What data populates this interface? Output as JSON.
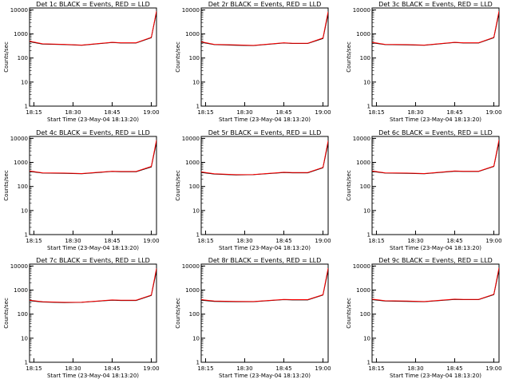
{
  "figure": {
    "background": "#ffffff",
    "event_color": "#000000",
    "lld_color": "#ff0000"
  },
  "chart_data": [
    {
      "type": "line",
      "title": "Det 1c BLACK = Events, RED = LLD",
      "xlabel": "Start Time (23-May-04 18:13:20)",
      "ylabel": "Counts/sec",
      "yscale": "log",
      "ylim": [
        1,
        12000
      ],
      "yticks": [
        1,
        10,
        100,
        1000,
        10000
      ],
      "ytick_labels": [
        "1",
        "10",
        "100",
        "1000",
        "10000"
      ],
      "xlim": [
        0,
        2920
      ],
      "xticks": [
        100,
        1000,
        1900,
        2800
      ],
      "xtick_labels": [
        "18:15",
        "18:30",
        "18:45",
        "19:00"
      ],
      "series": [
        {
          "color": "#000000",
          "x": [
            0,
            300,
            800,
            1200,
            1900,
            2100,
            2250,
            2450,
            2800,
            2920
          ],
          "y": [
            480,
            380,
            360,
            340,
            440,
            420,
            420,
            420,
            700,
            8000
          ]
        },
        {
          "color": "#ff0000",
          "x": [
            0,
            300,
            800,
            1200,
            1900,
            2100,
            2250,
            2450,
            2800,
            2920
          ],
          "y": [
            500,
            390,
            370,
            345,
            450,
            430,
            430,
            430,
            720,
            9000
          ]
        }
      ]
    },
    {
      "type": "line",
      "title": "Det 2r BLACK = Events, RED = LLD",
      "xlabel": "Start Time (23-May-04 18:13:20)",
      "ylabel": "Counts/sec",
      "yscale": "log",
      "ylim": [
        1,
        12000
      ],
      "yticks": [
        1,
        10,
        100,
        1000,
        10000
      ],
      "ytick_labels": [
        "1",
        "10",
        "100",
        "1000",
        "10000"
      ],
      "xlim": [
        0,
        2920
      ],
      "xticks": [
        100,
        1000,
        1900,
        2800
      ],
      "xtick_labels": [
        "18:15",
        "18:30",
        "18:45",
        "19:00"
      ],
      "series": [
        {
          "color": "#000000",
          "x": [
            0,
            300,
            800,
            1200,
            1900,
            2100,
            2250,
            2450,
            2800,
            2920
          ],
          "y": [
            450,
            360,
            340,
            330,
            420,
            400,
            400,
            400,
            650,
            7000
          ]
        },
        {
          "color": "#ff0000",
          "x": [
            0,
            300,
            800,
            1200,
            1900,
            2100,
            2250,
            2450,
            2800,
            2920
          ],
          "y": [
            470,
            370,
            350,
            335,
            430,
            410,
            410,
            410,
            680,
            8500
          ]
        }
      ]
    },
    {
      "type": "line",
      "title": "Det 3c BLACK = Events, RED = LLD",
      "xlabel": "Start Time (23-May-04 18:13:20)",
      "ylabel": "Counts/sec",
      "yscale": "log",
      "ylim": [
        1,
        12000
      ],
      "yticks": [
        1,
        10,
        100,
        1000,
        10000
      ],
      "ytick_labels": [
        "1",
        "10",
        "100",
        "1000",
        "10000"
      ],
      "xlim": [
        0,
        2920
      ],
      "xticks": [
        100,
        1000,
        1900,
        2800
      ],
      "xtick_labels": [
        "18:15",
        "18:30",
        "18:45",
        "19:00"
      ],
      "series": [
        {
          "color": "#000000",
          "x": [
            0,
            300,
            800,
            1200,
            1900,
            2100,
            2250,
            2450,
            2800,
            2920
          ],
          "y": [
            430,
            360,
            350,
            340,
            440,
            420,
            420,
            420,
            700,
            7500
          ]
        },
        {
          "color": "#ff0000",
          "x": [
            0,
            300,
            800,
            1200,
            1900,
            2100,
            2250,
            2450,
            2800,
            2920
          ],
          "y": [
            450,
            370,
            360,
            345,
            450,
            430,
            430,
            430,
            720,
            9000
          ]
        }
      ]
    },
    {
      "type": "line",
      "title": "Det 4c BLACK = Events, RED = LLD",
      "xlabel": "Start Time (23-May-04 18:13:20)",
      "ylabel": "Counts/sec",
      "yscale": "log",
      "ylim": [
        1,
        12000
      ],
      "yticks": [
        1,
        10,
        100,
        1000,
        10000
      ],
      "ytick_labels": [
        "1",
        "10",
        "100",
        "1000",
        "10000"
      ],
      "xlim": [
        0,
        2920
      ],
      "xticks": [
        100,
        1000,
        1900,
        2800
      ],
      "xtick_labels": [
        "18:15",
        "18:30",
        "18:45",
        "19:00"
      ],
      "series": [
        {
          "color": "#000000",
          "x": [
            0,
            300,
            800,
            1200,
            1900,
            2100,
            2250,
            2450,
            2800,
            2920
          ],
          "y": [
            420,
            360,
            350,
            340,
            420,
            410,
            410,
            410,
            650,
            7000
          ]
        },
        {
          "color": "#ff0000",
          "x": [
            0,
            300,
            800,
            1200,
            1900,
            2100,
            2250,
            2450,
            2800,
            2920
          ],
          "y": [
            440,
            370,
            360,
            345,
            430,
            420,
            420,
            420,
            680,
            8500
          ]
        }
      ]
    },
    {
      "type": "line",
      "title": "Det 5r BLACK = Events, RED = LLD",
      "xlabel": "Start Time (23-May-04 18:13:20)",
      "ylabel": "Counts/sec",
      "yscale": "log",
      "ylim": [
        1,
        12000
      ],
      "yticks": [
        1,
        10,
        100,
        1000,
        10000
      ],
      "ytick_labels": [
        "1",
        "10",
        "100",
        "1000",
        "10000"
      ],
      "xlim": [
        0,
        2920
      ],
      "xticks": [
        100,
        1000,
        1900,
        2800
      ],
      "xtick_labels": [
        "18:15",
        "18:30",
        "18:45",
        "19:00"
      ],
      "series": [
        {
          "color": "#000000",
          "x": [
            0,
            300,
            800,
            1200,
            1900,
            2100,
            2250,
            2450,
            2800,
            2920
          ],
          "y": [
            380,
            330,
            300,
            310,
            380,
            370,
            370,
            370,
            600,
            6500
          ]
        },
        {
          "color": "#ff0000",
          "x": [
            0,
            300,
            800,
            1200,
            1900,
            2100,
            2250,
            2450,
            2800,
            2920
          ],
          "y": [
            400,
            340,
            310,
            315,
            390,
            380,
            380,
            380,
            620,
            8000
          ]
        }
      ]
    },
    {
      "type": "line",
      "title": "Det 6c BLACK = Events, RED = LLD",
      "xlabel": "Start Time (23-May-04 18:13:20)",
      "ylabel": "Counts/sec",
      "yscale": "log",
      "ylim": [
        1,
        12000
      ],
      "yticks": [
        1,
        10,
        100,
        1000,
        10000
      ],
      "ytick_labels": [
        "1",
        "10",
        "100",
        "1000",
        "10000"
      ],
      "xlim": [
        0,
        2920
      ],
      "xticks": [
        100,
        1000,
        1900,
        2800
      ],
      "xtick_labels": [
        "18:15",
        "18:30",
        "18:45",
        "19:00"
      ],
      "series": [
        {
          "color": "#000000",
          "x": [
            0,
            300,
            800,
            1200,
            1900,
            2100,
            2250,
            2450,
            2800,
            2920
          ],
          "y": [
            420,
            360,
            350,
            340,
            430,
            420,
            420,
            420,
            680,
            7200
          ]
        },
        {
          "color": "#ff0000",
          "x": [
            0,
            300,
            800,
            1200,
            1900,
            2100,
            2250,
            2450,
            2800,
            2920
          ],
          "y": [
            440,
            370,
            360,
            345,
            440,
            430,
            430,
            430,
            700,
            8800
          ]
        }
      ]
    },
    {
      "type": "line",
      "title": "Det 7c BLACK = Events, RED = LLD",
      "xlabel": "Start Time (23-May-04 18:13:20)",
      "ylabel": "Counts/sec",
      "yscale": "log",
      "ylim": [
        1,
        12000
      ],
      "yticks": [
        1,
        10,
        100,
        1000,
        10000
      ],
      "ytick_labels": [
        "1",
        "10",
        "100",
        "1000",
        "10000"
      ],
      "xlim": [
        0,
        2920
      ],
      "xticks": [
        100,
        1000,
        1900,
        2800
      ],
      "xtick_labels": [
        "18:15",
        "18:30",
        "18:45",
        "19:00"
      ],
      "series": [
        {
          "color": "#000000",
          "x": [
            0,
            300,
            800,
            1200,
            1900,
            2100,
            2250,
            2450,
            2800,
            2920
          ],
          "y": [
            360,
            320,
            300,
            310,
            380,
            370,
            370,
            370,
            600,
            6500
          ]
        },
        {
          "color": "#ff0000",
          "x": [
            0,
            300,
            800,
            1200,
            1900,
            2100,
            2250,
            2450,
            2800,
            2920
          ],
          "y": [
            380,
            330,
            310,
            315,
            390,
            380,
            380,
            380,
            620,
            8000
          ]
        }
      ]
    },
    {
      "type": "line",
      "title": "Det 8r BLACK = Events, RED = LLD",
      "xlabel": "Start Time (23-May-04 18:13:20)",
      "ylabel": "Counts/sec",
      "yscale": "log",
      "ylim": [
        1,
        12000
      ],
      "yticks": [
        1,
        10,
        100,
        1000,
        10000
      ],
      "ytick_labels": [
        "1",
        "10",
        "100",
        "1000",
        "10000"
      ],
      "xlim": [
        0,
        2920
      ],
      "xticks": [
        100,
        1000,
        1900,
        2800
      ],
      "xtick_labels": [
        "18:15",
        "18:30",
        "18:45",
        "19:00"
      ],
      "series": [
        {
          "color": "#000000",
          "x": [
            0,
            300,
            800,
            1200,
            1900,
            2100,
            2250,
            2450,
            2800,
            2920
          ],
          "y": [
            380,
            340,
            330,
            330,
            400,
            390,
            390,
            390,
            620,
            6800
          ]
        },
        {
          "color": "#ff0000",
          "x": [
            0,
            300,
            800,
            1200,
            1900,
            2100,
            2250,
            2450,
            2800,
            2920
          ],
          "y": [
            400,
            350,
            340,
            335,
            410,
            400,
            400,
            400,
            640,
            8200
          ]
        }
      ]
    },
    {
      "type": "line",
      "title": "Det 9c BLACK = Events, RED = LLD",
      "xlabel": "Start Time (23-May-04 18:13:20)",
      "ylabel": "Counts/sec",
      "yscale": "log",
      "ylim": [
        1,
        12000
      ],
      "yticks": [
        1,
        10,
        100,
        1000,
        10000
      ],
      "ytick_labels": [
        "1",
        "10",
        "100",
        "1000",
        "10000"
      ],
      "xlim": [
        0,
        2920
      ],
      "xticks": [
        100,
        1000,
        1900,
        2800
      ],
      "xtick_labels": [
        "18:15",
        "18:30",
        "18:45",
        "19:00"
      ],
      "series": [
        {
          "color": "#000000",
          "x": [
            0,
            300,
            800,
            1200,
            1900,
            2100,
            2250,
            2450,
            2800,
            2920
          ],
          "y": [
            400,
            350,
            340,
            330,
            410,
            400,
            400,
            400,
            650,
            7000
          ]
        },
        {
          "color": "#ff0000",
          "x": [
            0,
            300,
            800,
            1200,
            1900,
            2100,
            2250,
            2450,
            2800,
            2920
          ],
          "y": [
            420,
            360,
            350,
            335,
            420,
            410,
            410,
            410,
            670,
            8500
          ]
        }
      ]
    }
  ]
}
